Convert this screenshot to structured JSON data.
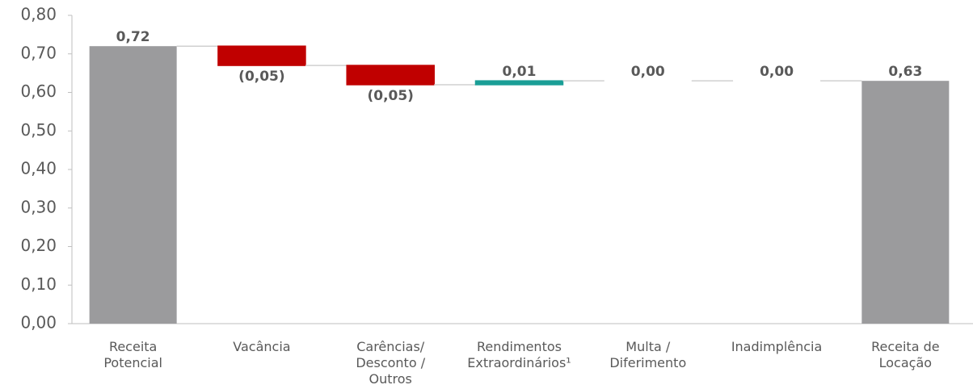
{
  "chart_data": {
    "type": "waterfall",
    "categories": [
      "Receita\nPotencial",
      "Vacância",
      "Carências/\nDesconto /\nOutros",
      "Rendimentos\nExtraordinários¹",
      "Multa /\nDiferimento",
      "Inadimplência",
      "Receita de\nLocação"
    ],
    "values": [
      0.72,
      -0.05,
      -0.05,
      0.01,
      0.0,
      0.0,
      0.63
    ],
    "value_labels": [
      "0,72",
      "(0,05)",
      "(0,05)",
      "0,01",
      "0,00",
      "0,00",
      "0,63"
    ],
    "measures": [
      "total",
      "relative",
      "relative",
      "relative",
      "relative",
      "relative",
      "total"
    ],
    "colors": {
      "total": "#9b9b9d",
      "negative": "#c00000",
      "positive": "#1a9e96"
    },
    "ylim": [
      0,
      0.8
    ],
    "yticks": [
      {
        "value": 0,
        "label": "0,00"
      },
      {
        "value": 0.1,
        "label": "0,10"
      },
      {
        "value": 0.2,
        "label": "0,20"
      },
      {
        "value": 0.3,
        "label": "0,30"
      },
      {
        "value": 0.4,
        "label": "0,40"
      },
      {
        "value": 0.5,
        "label": "0,50"
      },
      {
        "value": 0.6,
        "label": "0,60"
      },
      {
        "value": 0.7,
        "label": "0,70"
      },
      {
        "value": 0.8,
        "label": "0,80"
      }
    ]
  }
}
